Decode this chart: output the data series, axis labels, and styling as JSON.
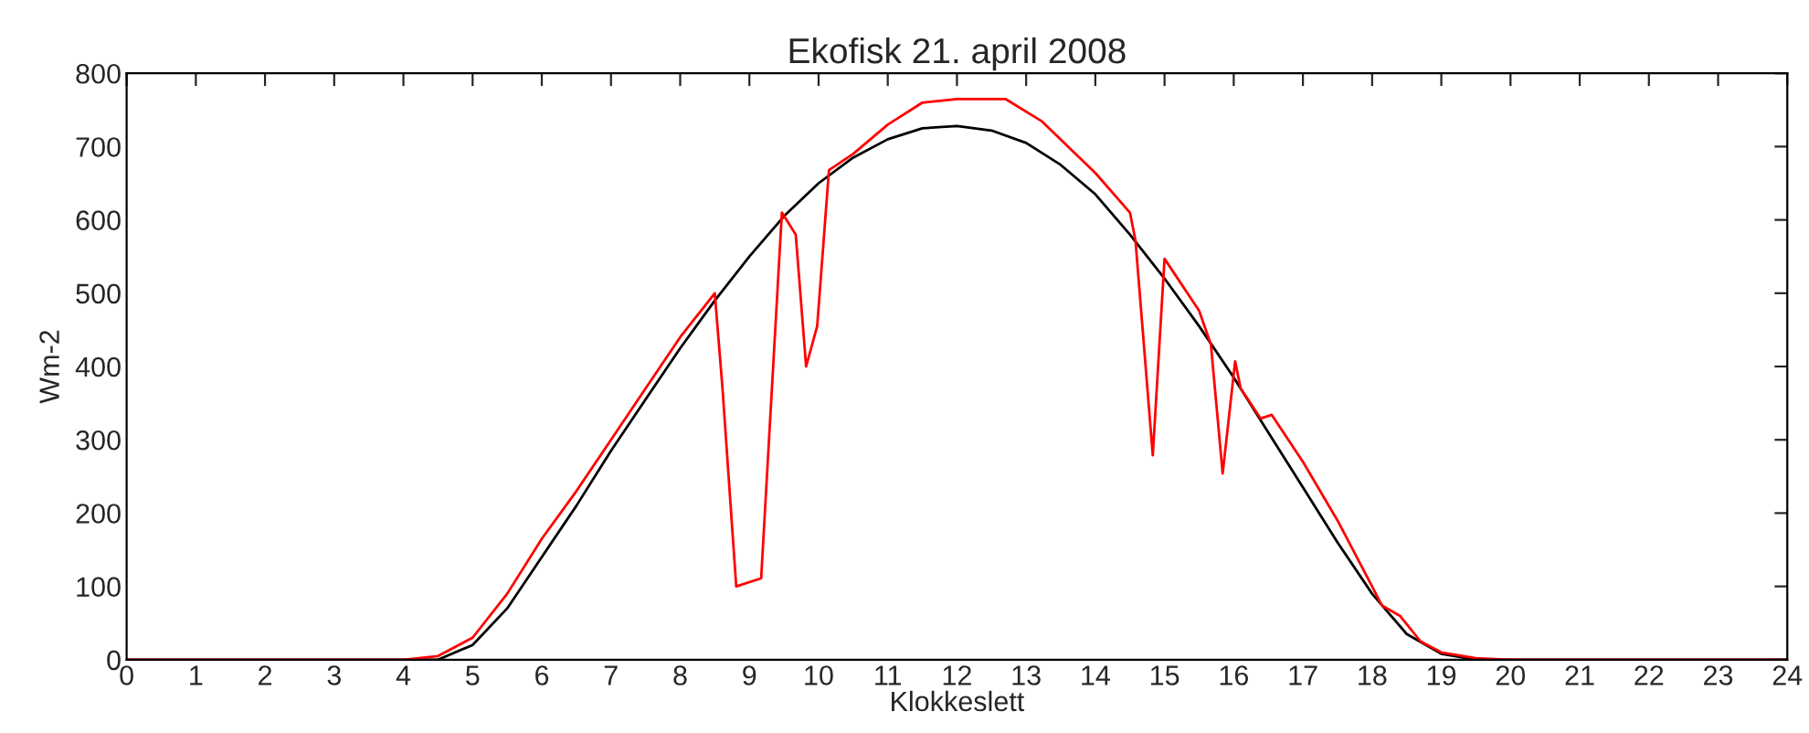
{
  "chart_data": {
    "type": "line",
    "title": "Ekofisk 21. april 2008",
    "xlabel": "Klokkeslett",
    "ylabel": "Wm-2",
    "xlim": [
      0,
      24
    ],
    "ylim": [
      0,
      800
    ],
    "xticks": [
      0,
      1,
      2,
      3,
      4,
      5,
      6,
      7,
      8,
      9,
      10,
      11,
      12,
      13,
      14,
      15,
      16,
      17,
      18,
      19,
      20,
      21,
      22,
      23,
      24
    ],
    "yticks": [
      0,
      100,
      200,
      300,
      400,
      500,
      600,
      700,
      800
    ],
    "grid": false,
    "legend": false,
    "marker": "none",
    "line_style": "solid",
    "series": [
      {
        "color": "#000000",
        "x": [
          0,
          4.5,
          5,
          5.5,
          6,
          6.5,
          7,
          7.5,
          8,
          8.5,
          9,
          9.5,
          10,
          10.5,
          11,
          11.5,
          12,
          12.5,
          13,
          13.5,
          14,
          14.5,
          15,
          15.5,
          16,
          16.5,
          17,
          17.5,
          18,
          18.5,
          19,
          19.5,
          24
        ],
        "values": [
          0,
          0,
          20,
          70,
          140,
          210,
          285,
          355,
          425,
          490,
          550,
          605,
          650,
          685,
          710,
          725,
          728,
          722,
          705,
          675,
          635,
          580,
          520,
          455,
          385,
          310,
          235,
          160,
          90,
          35,
          8,
          0,
          0
        ]
      },
      {
        "color": "#ff0000",
        "x": [
          0,
          4,
          4.5,
          5,
          5.5,
          6,
          6.5,
          7,
          7.5,
          8,
          8.5,
          8.61,
          8.81,
          9.17,
          9.47,
          9.67,
          9.82,
          9.98,
          10.15,
          10.5,
          11,
          11.5,
          12,
          12.7,
          13.22,
          14.0,
          14.5,
          14.58,
          14.83,
          15.0,
          15.5,
          15.67,
          15.84,
          16.02,
          16.1,
          16.39,
          16.55,
          17,
          17.5,
          18,
          18.14,
          18.4,
          18.7,
          19,
          19.5,
          20,
          24
        ],
        "values": [
          0,
          0,
          5,
          30,
          90,
          165,
          230,
          300,
          370,
          440,
          500,
          372,
          100,
          111,
          610,
          580,
          400,
          455,
          668,
          690,
          730,
          760,
          765,
          765,
          735,
          664,
          610,
          572,
          279,
          547,
          476,
          430,
          254,
          407,
          370,
          329,
          334,
          270,
          190,
          100,
          74,
          60,
          25,
          10,
          2,
          0,
          0
        ]
      }
    ]
  }
}
